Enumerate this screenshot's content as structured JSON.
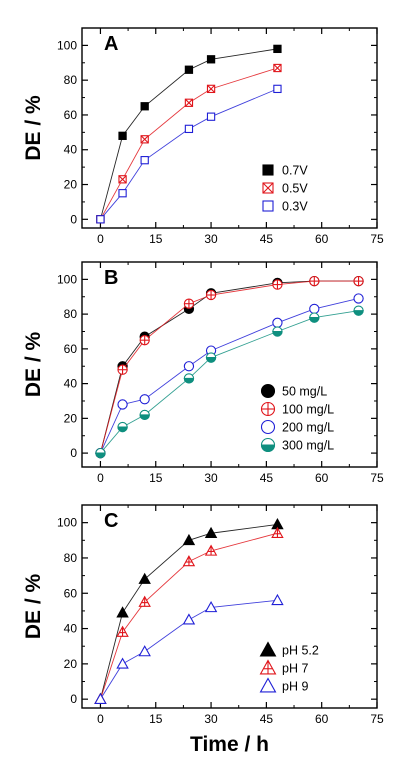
{
  "colors": {
    "black": "#000000",
    "red": "#e0151b",
    "blue": "#1f1fd6",
    "teal": "#0f8f7f",
    "line": "#777777"
  },
  "chart_data": [
    {
      "type": "line",
      "panel_label": "A",
      "xlabel": "",
      "ylabel": "DE / %",
      "xlim": [
        -5,
        75
      ],
      "ylim": [
        -5,
        110
      ],
      "xticks": [
        0,
        15,
        30,
        45,
        60,
        75
      ],
      "yticks": [
        0,
        20,
        40,
        60,
        80,
        100
      ],
      "legend_position": "bottom-right",
      "series": [
        {
          "name": "0.7V",
          "marker": "filled-square",
          "color": "#000000",
          "x": [
            0,
            6,
            12,
            24,
            30,
            48
          ],
          "y": [
            0,
            48,
            65,
            86,
            92,
            98
          ]
        },
        {
          "name": "0.5V",
          "marker": "crossed-square",
          "color": "#e0151b",
          "x": [
            0,
            6,
            12,
            24,
            30,
            48
          ],
          "y": [
            0,
            23,
            46,
            67,
            75,
            87
          ]
        },
        {
          "name": "0.3V",
          "marker": "open-square",
          "color": "#1f1fd6",
          "x": [
            0,
            6,
            12,
            24,
            30,
            48
          ],
          "y": [
            0,
            15,
            34,
            52,
            59,
            75
          ]
        }
      ]
    },
    {
      "type": "line",
      "panel_label": "B",
      "xlabel": "",
      "ylabel": "DE / %",
      "xlim": [
        -5,
        75
      ],
      "ylim": [
        -8,
        110
      ],
      "xticks": [
        0,
        15,
        30,
        45,
        60,
        75
      ],
      "yticks": [
        0,
        20,
        40,
        60,
        80,
        100
      ],
      "legend_position": "bottom-right",
      "series": [
        {
          "name": "50 mg/L",
          "marker": "filled-circle",
          "color": "#000000",
          "x": [
            0,
            6,
            12,
            24,
            30,
            48,
            58,
            70
          ],
          "y": [
            0,
            50,
            67,
            83,
            92,
            98,
            99,
            99
          ]
        },
        {
          "name": "100 mg/L",
          "marker": "crossed-circle",
          "color": "#e0151b",
          "x": [
            0,
            6,
            12,
            24,
            30,
            48,
            58,
            70
          ],
          "y": [
            0,
            48,
            65,
            86,
            91,
            97,
            99,
            99
          ]
        },
        {
          "name": "200 mg/L",
          "marker": "open-circle",
          "color": "#1f1fd6",
          "x": [
            0,
            6,
            12,
            24,
            30,
            48,
            58,
            70
          ],
          "y": [
            0,
            28,
            31,
            50,
            59,
            75,
            83,
            89
          ]
        },
        {
          "name": "300 mg/L",
          "marker": "half-circle",
          "color": "#0f8f7f",
          "x": [
            0,
            6,
            12,
            24,
            30,
            48,
            58,
            70
          ],
          "y": [
            0,
            15,
            22,
            43,
            55,
            70,
            78,
            82
          ]
        }
      ]
    },
    {
      "type": "line",
      "panel_label": "C",
      "xlabel": "Time / h",
      "ylabel": "DE / %",
      "xlim": [
        -5,
        75
      ],
      "ylim": [
        -5,
        110
      ],
      "xticks": [
        0,
        15,
        30,
        45,
        60,
        75
      ],
      "yticks": [
        0,
        20,
        40,
        60,
        80,
        100
      ],
      "legend_position": "bottom-right",
      "series": [
        {
          "name": "pH 5.2",
          "marker": "filled-triangle",
          "color": "#000000",
          "x": [
            0,
            6,
            12,
            24,
            30,
            48
          ],
          "y": [
            0,
            49,
            68,
            90,
            94,
            99
          ]
        },
        {
          "name": "pH 7",
          "marker": "crossed-triangle",
          "color": "#e0151b",
          "x": [
            0,
            6,
            12,
            24,
            30,
            48
          ],
          "y": [
            0,
            38,
            55,
            78,
            84,
            94
          ]
        },
        {
          "name": "pH 9",
          "marker": "open-triangle",
          "color": "#1f1fd6",
          "x": [
            0,
            6,
            12,
            24,
            30,
            48
          ],
          "y": [
            0,
            20,
            27,
            45,
            52,
            56
          ]
        }
      ]
    }
  ]
}
